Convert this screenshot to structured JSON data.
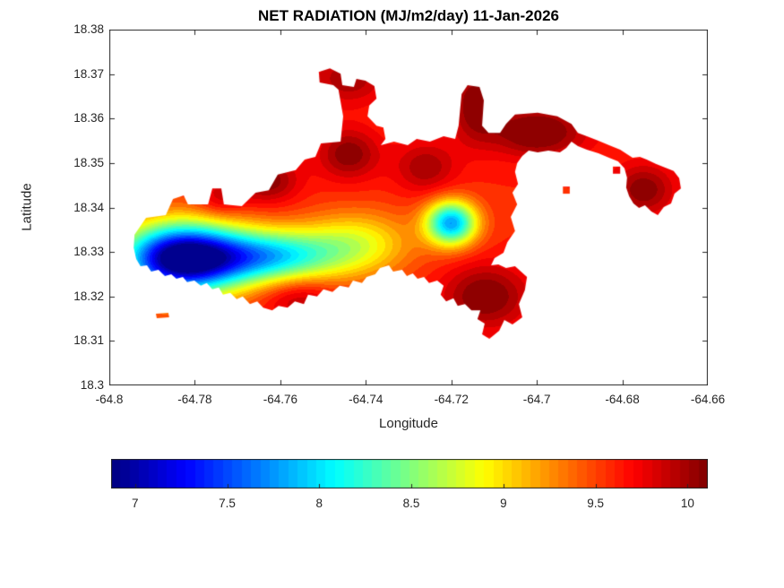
{
  "chart_data": {
    "type": "heatmap",
    "title": "NET RADIATION (MJ/m2/day) 11-Jan-2026",
    "units": "MJ/m2/day",
    "date": "11-Jan-2026",
    "xlabel": "Longitude",
    "ylabel": "Latitude",
    "xlim": [
      -64.8,
      -64.66
    ],
    "ylim": [
      18.3,
      18.38
    ],
    "grid": false,
    "colormap": "jet",
    "clim": [
      6.87,
      10.11
    ],
    "contour_levels": 32,
    "x_ticks": [
      {
        "value": -64.8,
        "label": "-64.8"
      },
      {
        "value": -64.78,
        "label": "-64.78"
      },
      {
        "value": -64.76,
        "label": "-64.76"
      },
      {
        "value": -64.74,
        "label": "-64.74"
      },
      {
        "value": -64.72,
        "label": "-64.72"
      },
      {
        "value": -64.7,
        "label": "-64.7"
      },
      {
        "value": -64.68,
        "label": "-64.68"
      },
      {
        "value": -64.66,
        "label": "-64.66"
      }
    ],
    "y_ticks": [
      {
        "value": 18.3,
        "label": "18.3"
      },
      {
        "value": 18.31,
        "label": "18.31"
      },
      {
        "value": 18.32,
        "label": "18.32"
      },
      {
        "value": 18.33,
        "label": "18.33"
      },
      {
        "value": 18.34,
        "label": "18.34"
      },
      {
        "value": 18.35,
        "label": "18.35"
      },
      {
        "value": 18.36,
        "label": "18.36"
      },
      {
        "value": 18.37,
        "label": "18.37"
      },
      {
        "value": 18.38,
        "label": "18.38"
      }
    ],
    "colorbar": {
      "orientation": "horizontal",
      "ticks": [
        {
          "value": 7,
          "label": "7"
        },
        {
          "value": 7.5,
          "label": "7.5"
        },
        {
          "value": 8,
          "label": "8"
        },
        {
          "value": 8.5,
          "label": "8.5"
        },
        {
          "value": 9,
          "label": "9"
        },
        {
          "value": 9.5,
          "label": "9.5"
        },
        {
          "value": 10,
          "label": "10"
        }
      ]
    },
    "field_model": {
      "base": 9.6,
      "gaussians": [
        [
          -64.783,
          18.3285,
          -2.9,
          0.01,
          0.0055
        ],
        [
          -64.762,
          18.329,
          -1.5,
          0.011,
          0.0042
        ],
        [
          -64.742,
          18.332,
          -0.7,
          0.009,
          0.005
        ],
        [
          -64.72,
          18.3365,
          -1.8,
          0.0042,
          0.0035
        ],
        [
          -64.763,
          18.346,
          0.5,
          0.005,
          0.0035
        ],
        [
          -64.744,
          18.352,
          0.5,
          0.005,
          0.004
        ],
        [
          -64.726,
          18.349,
          0.4,
          0.005,
          0.004
        ],
        [
          -64.7145,
          18.3635,
          0.5,
          0.004,
          0.006
        ],
        [
          -64.7,
          18.357,
          0.6,
          0.008,
          0.004
        ],
        [
          -64.675,
          18.344,
          0.5,
          0.005,
          0.004
        ],
        [
          -64.712,
          18.32,
          0.55,
          0.007,
          0.005
        ],
        [
          -64.756,
          18.32,
          0.35,
          0.006,
          0.0035
        ],
        [
          -64.744,
          18.369,
          0.4,
          0.006,
          0.004
        ],
        [
          -64.774,
          18.342,
          0.3,
          0.004,
          0.003
        ]
      ]
    },
    "island_polygons": [
      [
        [
          -64.7941,
          18.3339
        ],
        [
          -64.7914,
          18.3377
        ],
        [
          -64.7868,
          18.3383
        ],
        [
          -64.7851,
          18.3419
        ],
        [
          -64.7826,
          18.3427
        ],
        [
          -64.7816,
          18.3407
        ],
        [
          -64.7769,
          18.3407
        ],
        [
          -64.7759,
          18.3443
        ],
        [
          -64.7738,
          18.3443
        ],
        [
          -64.7732,
          18.3407
        ],
        [
          -64.769,
          18.3403
        ],
        [
          -64.7658,
          18.3433
        ],
        [
          -64.7627,
          18.3439
        ],
        [
          -64.7606,
          18.3474
        ],
        [
          -64.7564,
          18.3484
        ],
        [
          -64.7543,
          18.3508
        ],
        [
          -64.7518,
          18.3514
        ],
        [
          -64.7505,
          18.3544
        ],
        [
          -64.7459,
          18.3548
        ],
        [
          -64.7453,
          18.3605
        ],
        [
          -64.7464,
          18.3665
        ],
        [
          -64.7476,
          18.3675
        ],
        [
          -64.7508,
          18.3681
        ],
        [
          -64.751,
          18.3705
        ],
        [
          -64.7484,
          18.3713
        ],
        [
          -64.7459,
          18.3701
        ],
        [
          -64.7455,
          18.3675
        ],
        [
          -64.7428,
          18.3671
        ],
        [
          -64.7422,
          18.3689
        ],
        [
          -64.7401,
          18.3685
        ],
        [
          -64.738,
          18.3673
        ],
        [
          -64.7375,
          18.3645
        ],
        [
          -64.7392,
          18.3629
        ],
        [
          -64.7396,
          18.3605
        ],
        [
          -64.7375,
          18.3584
        ],
        [
          -64.7359,
          18.358
        ],
        [
          -64.7354,
          18.3554
        ],
        [
          -64.7365,
          18.354
        ],
        [
          -64.7334,
          18.3548
        ],
        [
          -64.7302,
          18.354
        ],
        [
          -64.7281,
          18.3554
        ],
        [
          -64.725,
          18.3548
        ],
        [
          -64.7218,
          18.356
        ],
        [
          -64.7191,
          18.3554
        ],
        [
          -64.7183,
          18.3584
        ],
        [
          -64.7176,
          18.3655
        ],
        [
          -64.7162,
          18.3675
        ],
        [
          -64.7134,
          18.3671
        ],
        [
          -64.7124,
          18.3641
        ],
        [
          -64.7128,
          18.3584
        ],
        [
          -64.7113,
          18.3568
        ],
        [
          -64.7086,
          18.3568
        ],
        [
          -64.7072,
          18.3588
        ],
        [
          -64.7051,
          18.3609
        ],
        [
          -64.6998,
          18.3613
        ],
        [
          -64.6952,
          18.3605
        ],
        [
          -64.6919,
          18.3588
        ],
        [
          -64.6904,
          18.3568
        ],
        [
          -64.6883,
          18.356
        ],
        [
          -64.6856,
          18.355
        ],
        [
          -64.6831,
          18.354
        ],
        [
          -64.6805,
          18.353
        ],
        [
          -64.6789,
          18.352
        ],
        [
          -64.6776,
          18.3512
        ],
        [
          -64.6759,
          18.3514
        ],
        [
          -64.6743,
          18.3508
        ],
        [
          -64.6722,
          18.3498
        ],
        [
          -64.6701,
          18.349
        ],
        [
          -64.668,
          18.3482
        ],
        [
          -64.6667,
          18.3466
        ],
        [
          -64.6663,
          18.3443
        ],
        [
          -64.6678,
          18.3431
        ],
        [
          -64.6686,
          18.3409
        ],
        [
          -64.6703,
          18.3401
        ],
        [
          -64.6717,
          18.3383
        ],
        [
          -64.6732,
          18.3391
        ],
        [
          -64.6747,
          18.3405
        ],
        [
          -64.6761,
          18.3399
        ],
        [
          -64.6774,
          18.3409
        ],
        [
          -64.6784,
          18.3425
        ],
        [
          -64.6791,
          18.3445
        ],
        [
          -64.6789,
          18.3467
        ],
        [
          -64.6795,
          18.3488
        ],
        [
          -64.681,
          18.3504
        ],
        [
          -64.6831,
          18.3512
        ],
        [
          -64.6856,
          18.3522
        ],
        [
          -64.6883,
          18.353
        ],
        [
          -64.6904,
          18.3538
        ],
        [
          -64.6919,
          18.3548
        ],
        [
          -64.6931,
          18.3534
        ],
        [
          -64.6946,
          18.3524
        ],
        [
          -64.6973,
          18.3528
        ],
        [
          -64.6998,
          18.3524
        ],
        [
          -64.7019,
          18.3528
        ],
        [
          -64.7034,
          18.3516
        ],
        [
          -64.7046,
          18.35
        ],
        [
          -64.7051,
          18.348
        ],
        [
          -64.7044,
          18.3453
        ],
        [
          -64.7057,
          18.3433
        ],
        [
          -64.7046,
          18.3407
        ],
        [
          -64.7061,
          18.3379
        ],
        [
          -64.7051,
          18.3347
        ],
        [
          -64.7069,
          18.3322
        ],
        [
          -64.7078,
          18.3298
        ],
        [
          -64.7099,
          18.3286
        ],
        [
          -64.7107,
          18.327
        ],
        [
          -64.709,
          18.3272
        ],
        [
          -64.7072,
          18.3264
        ],
        [
          -64.7051,
          18.3268
        ],
        [
          -64.7023,
          18.3244
        ],
        [
          -64.7028,
          18.3214
        ],
        [
          -64.7042,
          18.3183
        ],
        [
          -64.7034,
          18.3153
        ],
        [
          -64.7057,
          18.3137
        ],
        [
          -64.7076,
          18.3147
        ],
        [
          -64.7088,
          18.3123
        ],
        [
          -64.7111,
          18.3105
        ],
        [
          -64.7128,
          18.3115
        ],
        [
          -64.7122,
          18.3139
        ],
        [
          -64.7139,
          18.3149
        ],
        [
          -64.7132,
          18.3169
        ],
        [
          -64.7153,
          18.3169
        ],
        [
          -64.7168,
          18.3183
        ],
        [
          -64.7185,
          18.3179
        ],
        [
          -64.7195,
          18.3196
        ],
        [
          -64.7212,
          18.3189
        ],
        [
          -64.7225,
          18.3204
        ],
        [
          -64.7218,
          18.3224
        ],
        [
          -64.7233,
          18.3236
        ],
        [
          -64.7252,
          18.323
        ],
        [
          -64.7264,
          18.3244
        ],
        [
          -64.7279,
          18.324
        ],
        [
          -64.729,
          18.3252
        ],
        [
          -64.7304,
          18.3246
        ],
        [
          -64.7315,
          18.326
        ],
        [
          -64.7336,
          18.3256
        ],
        [
          -64.7346,
          18.327
        ],
        [
          -64.7367,
          18.3264
        ],
        [
          -64.7378,
          18.325
        ],
        [
          -64.7398,
          18.3244
        ],
        [
          -64.7409,
          18.323
        ],
        [
          -64.743,
          18.3236
        ],
        [
          -64.744,
          18.322
        ],
        [
          -64.7461,
          18.3224
        ],
        [
          -64.7478,
          18.321
        ],
        [
          -64.7499,
          18.3216
        ],
        [
          -64.7514,
          18.32
        ],
        [
          -64.7535,
          18.3204
        ],
        [
          -64.7545,
          18.3183
        ],
        [
          -64.7566,
          18.3189
        ],
        [
          -64.7583,
          18.3175
        ],
        [
          -64.7604,
          18.3179
        ],
        [
          -64.7619,
          18.3169
        ],
        [
          -64.764,
          18.3175
        ],
        [
          -64.7654,
          18.3189
        ],
        [
          -64.7671,
          18.3183
        ],
        [
          -64.7688,
          18.32
        ],
        [
          -64.7702,
          18.3194
        ],
        [
          -64.7717,
          18.3208
        ],
        [
          -64.7734,
          18.3204
        ],
        [
          -64.7744,
          18.322
        ],
        [
          -64.7759,
          18.3216
        ],
        [
          -64.7772,
          18.323
        ],
        [
          -64.7786,
          18.3224
        ],
        [
          -64.7801,
          18.3236
        ],
        [
          -64.7818,
          18.3232
        ],
        [
          -64.7828,
          18.3244
        ],
        [
          -64.7843,
          18.324
        ],
        [
          -64.7855,
          18.325
        ],
        [
          -64.787,
          18.3246
        ],
        [
          -64.7885,
          18.326
        ],
        [
          -64.7902,
          18.3256
        ],
        [
          -64.7912,
          18.327
        ],
        [
          -64.7927,
          18.3268
        ],
        [
          -64.7937,
          18.3284
        ],
        [
          -64.7943,
          18.331
        ]
      ],
      [
        [
          -64.7891,
          18.3161
        ],
        [
          -64.7862,
          18.3163
        ],
        [
          -64.786,
          18.3153
        ],
        [
          -64.7889,
          18.3151
        ]
      ],
      [
        [
          -64.6939,
          18.3447
        ],
        [
          -64.6923,
          18.3447
        ],
        [
          -64.6923,
          18.3431
        ],
        [
          -64.6939,
          18.3431
        ]
      ],
      [
        [
          -64.6822,
          18.3492
        ],
        [
          -64.6805,
          18.3492
        ],
        [
          -64.6805,
          18.3476
        ],
        [
          -64.6822,
          18.3476
        ]
      ]
    ]
  }
}
